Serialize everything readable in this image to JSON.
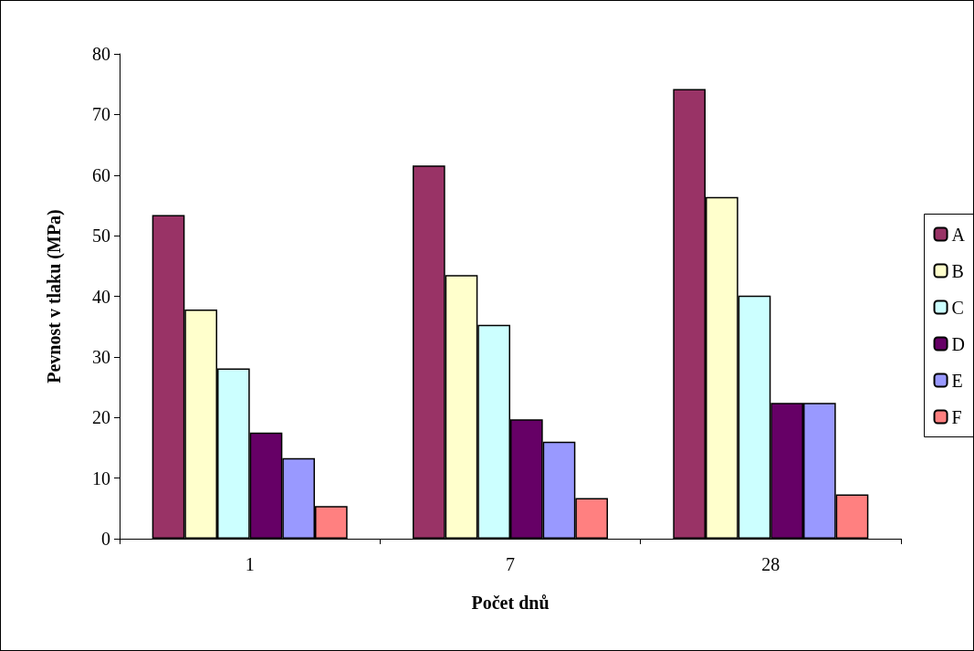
{
  "chart_data": {
    "type": "bar",
    "xlabel": "Počet dnů",
    "ylabel": "Pevnost v tlaku (MPa)",
    "categories": [
      "1",
      "7",
      "28"
    ],
    "series": [
      {
        "name": "A",
        "color": "#993366",
        "values": [
          53.4,
          61.6,
          74.2
        ]
      },
      {
        "name": "B",
        "color": "#ffffcc",
        "values": [
          37.8,
          43.5,
          56.4
        ]
      },
      {
        "name": "C",
        "color": "#ccffff",
        "values": [
          28.1,
          35.3,
          40.1
        ]
      },
      {
        "name": "D",
        "color": "#660066",
        "values": [
          17.5,
          19.7,
          22.4
        ]
      },
      {
        "name": "E",
        "color": "#9999ff",
        "values": [
          13.3,
          16.0,
          22.4
        ]
      },
      {
        "name": "F",
        "color": "#ff8080",
        "values": [
          5.4,
          6.7,
          7.3
        ]
      }
    ],
    "ylim": [
      0,
      80
    ],
    "yticks": [
      0,
      10,
      20,
      30,
      40,
      50,
      60,
      70,
      80
    ],
    "grid": false,
    "legend": "right"
  }
}
